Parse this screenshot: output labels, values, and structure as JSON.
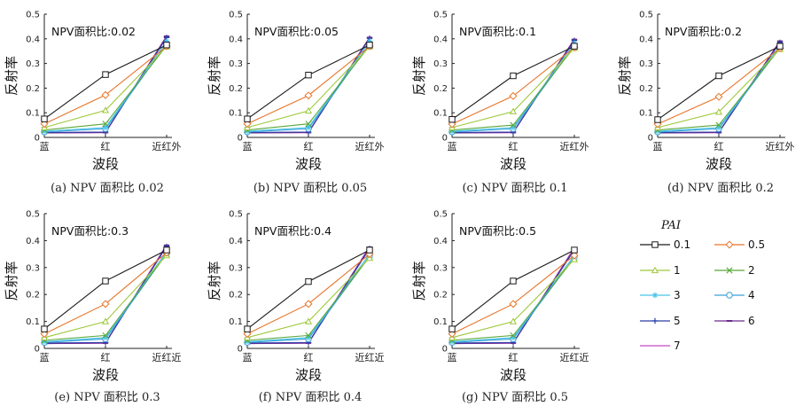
{
  "chart_data": [
    {
      "type": "line",
      "panel": "a",
      "annotation": "NPV面积比:0.02",
      "caption": "(a) NPV 面积比 0.02",
      "ylabel": "反射率",
      "xlabel": "波段",
      "categories": [
        "蓝",
        "红",
        "近红外"
      ],
      "ylim": [
        0,
        0.5
      ],
      "yticks": [
        "0",
        "0.1",
        "0.2",
        "0.3",
        "0.4",
        "0.5"
      ],
      "series": [
        {
          "name": "0.1",
          "values": [
            0.075,
            0.255,
            0.375
          ]
        },
        {
          "name": "0.5",
          "values": [
            0.055,
            0.172,
            0.37
          ]
        },
        {
          "name": "1",
          "values": [
            0.04,
            0.11,
            0.368
          ]
        },
        {
          "name": "2",
          "values": [
            0.03,
            0.055,
            0.372
          ]
        },
        {
          "name": "3",
          "values": [
            0.025,
            0.04,
            0.39
          ]
        },
        {
          "name": "4",
          "values": [
            0.022,
            0.035,
            0.38
          ]
        },
        {
          "name": "5",
          "values": [
            0.02,
            0.022,
            0.405
          ]
        },
        {
          "name": "6",
          "values": [
            0.018,
            0.02,
            0.41
          ]
        },
        {
          "name": "7",
          "values": [
            0.018,
            0.019,
            0.412
          ]
        }
      ]
    },
    {
      "type": "line",
      "panel": "b",
      "annotation": "NPV面积比:0.05",
      "caption": "(b) NPV 面积比 0.05",
      "ylabel": "反射率",
      "xlabel": "波段",
      "categories": [
        "蓝",
        "红",
        "近红外"
      ],
      "ylim": [
        0,
        0.5
      ],
      "yticks": [
        "0",
        "0.1",
        "0.2",
        "0.3",
        "0.4",
        "0.5"
      ],
      "series": [
        {
          "name": "0.1",
          "values": [
            0.075,
            0.253,
            0.375
          ]
        },
        {
          "name": "0.5",
          "values": [
            0.055,
            0.17,
            0.37
          ]
        },
        {
          "name": "1",
          "values": [
            0.04,
            0.108,
            0.368
          ]
        },
        {
          "name": "2",
          "values": [
            0.03,
            0.055,
            0.372
          ]
        },
        {
          "name": "3",
          "values": [
            0.025,
            0.04,
            0.39
          ]
        },
        {
          "name": "4",
          "values": [
            0.022,
            0.035,
            0.38
          ]
        },
        {
          "name": "5",
          "values": [
            0.02,
            0.022,
            0.402
          ]
        },
        {
          "name": "6",
          "values": [
            0.018,
            0.02,
            0.405
          ]
        },
        {
          "name": "7",
          "values": [
            0.018,
            0.019,
            0.407
          ]
        }
      ]
    },
    {
      "type": "line",
      "panel": "c",
      "annotation": "NPV面积比:0.1",
      "caption": "(c) NPV 面积比 0.1",
      "ylabel": "反射率",
      "xlabel": "波段",
      "categories": [
        "蓝",
        "红",
        "近红外"
      ],
      "ylim": [
        0,
        0.5
      ],
      "yticks": [
        "0",
        "0.1",
        "0.2",
        "0.3",
        "0.4",
        "0.5"
      ],
      "series": [
        {
          "name": "0.1",
          "values": [
            0.073,
            0.25,
            0.37
          ]
        },
        {
          "name": "0.5",
          "values": [
            0.054,
            0.168,
            0.365
          ]
        },
        {
          "name": "1",
          "values": [
            0.04,
            0.105,
            0.362
          ]
        },
        {
          "name": "2",
          "values": [
            0.03,
            0.05,
            0.367
          ]
        },
        {
          "name": "3",
          "values": [
            0.025,
            0.04,
            0.382
          ]
        },
        {
          "name": "4",
          "values": [
            0.022,
            0.035,
            0.372
          ]
        },
        {
          "name": "5",
          "values": [
            0.02,
            0.022,
            0.393
          ]
        },
        {
          "name": "6",
          "values": [
            0.018,
            0.02,
            0.397
          ]
        },
        {
          "name": "7",
          "values": [
            0.018,
            0.019,
            0.4
          ]
        }
      ]
    },
    {
      "type": "line",
      "panel": "d",
      "annotation": "NPV面积比:0.2",
      "caption": "(d) NPV 面积比 0.2",
      "ylabel": "反射率",
      "xlabel": "波段",
      "categories": [
        "蓝",
        "红",
        "近红外"
      ],
      "ylim": [
        0,
        0.5
      ],
      "yticks": [
        "0",
        "0.1",
        "0.2",
        "0.3",
        "0.4",
        "0.5"
      ],
      "series": [
        {
          "name": "0.1",
          "values": [
            0.072,
            0.25,
            0.37
          ]
        },
        {
          "name": "0.5",
          "values": [
            0.054,
            0.165,
            0.362
          ]
        },
        {
          "name": "1",
          "values": [
            0.04,
            0.103,
            0.358
          ]
        },
        {
          "name": "2",
          "values": [
            0.03,
            0.05,
            0.362
          ]
        },
        {
          "name": "3",
          "values": [
            0.025,
            0.04,
            0.372
          ]
        },
        {
          "name": "4",
          "values": [
            0.022,
            0.035,
            0.365
          ]
        },
        {
          "name": "5",
          "values": [
            0.02,
            0.022,
            0.385
          ]
        },
        {
          "name": "6",
          "values": [
            0.018,
            0.02,
            0.39
          ]
        },
        {
          "name": "7",
          "values": [
            0.018,
            0.019,
            0.392
          ]
        }
      ]
    },
    {
      "type": "line",
      "panel": "e",
      "annotation": "NPV面积比:0.3",
      "caption": "(e) NPV 面积比 0.3",
      "ylabel": "反射率",
      "xlabel": "波段",
      "categories": [
        "蓝",
        "红",
        "近红近"
      ],
      "ylim": [
        0,
        0.5
      ],
      "yticks": [
        "0",
        "0.1",
        "0.2",
        "0.3",
        "0.4",
        "0.5"
      ],
      "series": [
        {
          "name": "0.1",
          "values": [
            0.072,
            0.25,
            0.365
          ]
        },
        {
          "name": "0.5",
          "values": [
            0.054,
            0.165,
            0.355
          ]
        },
        {
          "name": "1",
          "values": [
            0.04,
            0.1,
            0.345
          ]
        },
        {
          "name": "2",
          "values": [
            0.03,
            0.048,
            0.35
          ]
        },
        {
          "name": "3",
          "values": [
            0.025,
            0.04,
            0.36
          ]
        },
        {
          "name": "4",
          "values": [
            0.022,
            0.035,
            0.352
          ]
        },
        {
          "name": "5",
          "values": [
            0.02,
            0.022,
            0.378
          ]
        },
        {
          "name": "6",
          "values": [
            0.018,
            0.02,
            0.382
          ]
        },
        {
          "name": "7",
          "values": [
            0.018,
            0.019,
            0.385
          ]
        }
      ]
    },
    {
      "type": "line",
      "panel": "f",
      "annotation": "NPV面积比:0.4",
      "caption": "(f) NPV 面积比 0.4",
      "ylabel": "反射率",
      "xlabel": "波段",
      "categories": [
        "蓝",
        "红",
        "近红近"
      ],
      "ylim": [
        0,
        0.5
      ],
      "yticks": [
        "0",
        "0.1",
        "0.2",
        "0.3",
        "0.4",
        "0.5"
      ],
      "series": [
        {
          "name": "0.1",
          "values": [
            0.072,
            0.248,
            0.365
          ]
        },
        {
          "name": "0.5",
          "values": [
            0.054,
            0.165,
            0.35
          ]
        },
        {
          "name": "1",
          "values": [
            0.04,
            0.1,
            0.335
          ]
        },
        {
          "name": "2",
          "values": [
            0.03,
            0.048,
            0.34
          ]
        },
        {
          "name": "3",
          "values": [
            0.025,
            0.04,
            0.35
          ]
        },
        {
          "name": "4",
          "values": [
            0.022,
            0.035,
            0.342
          ]
        },
        {
          "name": "5",
          "values": [
            0.02,
            0.022,
            0.37
          ]
        },
        {
          "name": "6",
          "values": [
            0.018,
            0.02,
            0.375
          ]
        },
        {
          "name": "7",
          "values": [
            0.018,
            0.019,
            0.378
          ]
        }
      ]
    },
    {
      "type": "line",
      "panel": "g",
      "annotation": "NPV面积比:0.5",
      "caption": "(g) NPV 面积比 0.5",
      "ylabel": "反射率",
      "xlabel": "波段",
      "categories": [
        "蓝",
        "红",
        "近红近"
      ],
      "ylim": [
        0,
        0.5
      ],
      "yticks": [
        "0",
        "0.1",
        "0.2",
        "0.3",
        "0.4",
        "0.5"
      ],
      "series": [
        {
          "name": "0.1",
          "values": [
            0.072,
            0.25,
            0.365
          ]
        },
        {
          "name": "0.5",
          "values": [
            0.054,
            0.165,
            0.345
          ]
        },
        {
          "name": "1",
          "values": [
            0.04,
            0.1,
            0.33
          ]
        },
        {
          "name": "2",
          "values": [
            0.03,
            0.048,
            0.335
          ]
        },
        {
          "name": "3",
          "values": [
            0.025,
            0.04,
            0.345
          ]
        },
        {
          "name": "4",
          "values": [
            0.022,
            0.035,
            0.338
          ]
        },
        {
          "name": "5",
          "values": [
            0.02,
            0.022,
            0.365
          ]
        },
        {
          "name": "6",
          "values": [
            0.018,
            0.02,
            0.37
          ]
        },
        {
          "name": "7",
          "values": [
            0.018,
            0.019,
            0.374
          ]
        }
      ]
    }
  ],
  "legend": {
    "title": "PAI",
    "items": [
      {
        "name": "0.1",
        "color": "#1a1a1a",
        "marker": "square"
      },
      {
        "name": "0.5",
        "color": "#e8742a",
        "marker": "diamond"
      },
      {
        "name": "1",
        "color": "#9fc83a",
        "marker": "triangle"
      },
      {
        "name": "2",
        "color": "#5aa83a",
        "marker": "x"
      },
      {
        "name": "3",
        "color": "#46c3e8",
        "marker": "star"
      },
      {
        "name": "4",
        "color": "#3b9fd6",
        "marker": "circle"
      },
      {
        "name": "5",
        "color": "#2a3fa8",
        "marker": "plus"
      },
      {
        "name": "6",
        "color": "#6a2a8c",
        "marker": "dash"
      },
      {
        "name": "7",
        "color": "#c848c8",
        "marker": "none"
      }
    ]
  }
}
